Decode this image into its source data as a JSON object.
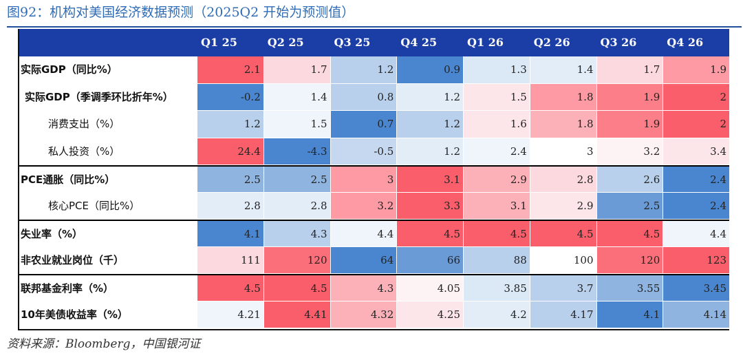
{
  "title": "图92：机构对美国经济数据预测（2025Q2 开始为预测值）",
  "source": "资料来源：Bloomberg，中国银河证",
  "columns": [
    "Q1 25",
    "Q2 25",
    "Q3 25",
    "Q4 25",
    "Q1 26",
    "Q2 26",
    "Q3 26",
    "Q4 26"
  ],
  "rows": [
    {
      "label": "实际GDP（同比%）",
      "values": [
        "2.1",
        "1.7",
        "1.2",
        "0.9",
        "1.3",
        "1.4",
        "1.7",
        "1.9"
      ],
      "colors": [
        "#fa5e6a",
        "#fcd9de",
        "#b9d0ec",
        "#4a86cf",
        "#dbe8f6",
        "#e3edf8",
        "#fcd9de",
        "#fd9aa3"
      ]
    },
    {
      "label": "实际GDP（季调季环比折年%）",
      "values": [
        "-0.2",
        "1.4",
        "0.8",
        "1.2",
        "1.5",
        "1.8",
        "1.9",
        "2"
      ],
      "colors": [
        "#4a86cf",
        "#f0f5fb",
        "#b9d0ec",
        "#e3edf8",
        "#fde6ea",
        "#fd9aa3",
        "#fb7e89",
        "#fa5e6a"
      ]
    },
    {
      "label": "消费支出（%）",
      "values": [
        "1.2",
        "1.5",
        "0.7",
        "1.2",
        "1.6",
        "1.8",
        "1.9",
        "2"
      ],
      "colors": [
        "#b9d0ec",
        "#f0f5fb",
        "#4a86cf",
        "#b9d0ec",
        "#fde6ea",
        "#fcb1b9",
        "#fb7e89",
        "#fa5e6a"
      ]
    },
    {
      "label": "私人投资（%）",
      "values": [
        "24.4",
        "-4.3",
        "-0.5",
        "1.2",
        "2.4",
        "3",
        "3.2",
        "3.4"
      ],
      "colors": [
        "#fa5e6a",
        "#4a86cf",
        "#c6d8ef",
        "#e3edf8",
        "#f0f5fb",
        "#ffffff",
        "#fdf2f4",
        "#fde6ea"
      ]
    },
    {
      "label": "PCE通胀（同比%）",
      "values": [
        "2.5",
        "2.5",
        "3",
        "3.1",
        "2.9",
        "2.8",
        "2.6",
        "2.4"
      ],
      "colors": [
        "#8fb4e0",
        "#8fb4e0",
        "#fd9aa3",
        "#fa5e6a",
        "#fcb1b9",
        "#fcd9de",
        "#b9d0ec",
        "#4a86cf"
      ]
    },
    {
      "label": "核心PCE（同比%）",
      "values": [
        "2.8",
        "2.8",
        "3.2",
        "3.3",
        "3.1",
        "2.9",
        "2.5",
        "2.4"
      ],
      "colors": [
        "#e3edf8",
        "#e3edf8",
        "#fd9aa3",
        "#fa5e6a",
        "#fcb1b9",
        "#fde6ea",
        "#6a9bd6",
        "#4a86cf"
      ]
    },
    {
      "label": "失业率（%）",
      "values": [
        "4.1",
        "4.3",
        "4.4",
        "4.5",
        "4.5",
        "4.5",
        "4.5",
        "4.4"
      ],
      "colors": [
        "#4a86cf",
        "#b9d0ec",
        "#f0f5fb",
        "#fa5e6a",
        "#fa5e6a",
        "#fa5e6a",
        "#fa5e6a",
        "#f0f5fb"
      ]
    },
    {
      "label": "非农业就业岗位（千）",
      "values": [
        "111",
        "120",
        "64",
        "66",
        "88",
        "100",
        "120",
        "123"
      ],
      "colors": [
        "#fcd9de",
        "#fb6f7b",
        "#4a86cf",
        "#6a9bd6",
        "#b9d0ec",
        "#ffffff",
        "#fb6f7b",
        "#fa5e6a"
      ]
    },
    {
      "label": "联邦基金利率（%）",
      "values": [
        "4.5",
        "4.5",
        "4.3",
        "4.05",
        "3.85",
        "3.7",
        "3.55",
        "3.45"
      ],
      "colors": [
        "#fa5e6a",
        "#fa5e6a",
        "#fcb1b9",
        "#fdf2f4",
        "#dbe8f6",
        "#b9d0ec",
        "#8fb4e0",
        "#4a86cf"
      ]
    },
    {
      "label": "10年美债收益率（%）",
      "values": [
        "4.21",
        "4.41",
        "4.32",
        "4.25",
        "4.2",
        "4.17",
        "4.1",
        "4.14"
      ],
      "colors": [
        "#f0f5fb",
        "#fa5e6a",
        "#fcb1b9",
        "#fde6ea",
        "#e3edf8",
        "#b9d0ec",
        "#4a86cf",
        "#8fb4e0"
      ]
    }
  ]
}
